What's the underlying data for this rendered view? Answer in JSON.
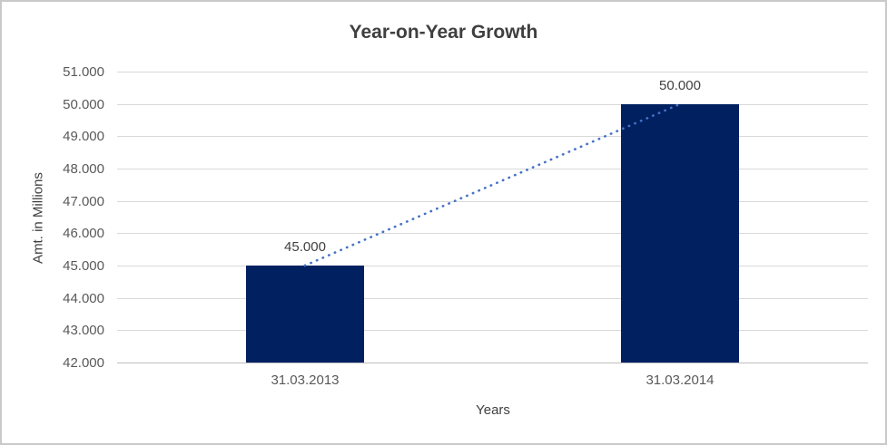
{
  "chart_data": {
    "type": "bar",
    "title": "Year-on-Year Growth",
    "xlabel": "Years",
    "ylabel": "Amt. in Millions",
    "categories": [
      "31.03.2013",
      "31.03.2014"
    ],
    "series": [
      {
        "name": "bars",
        "type": "bar",
        "values": [
          45000,
          50000
        ],
        "data_labels": [
          "45.000",
          "50.000"
        ],
        "color": "#002060"
      },
      {
        "name": "trendline",
        "type": "dotted-line",
        "values": [
          45000,
          50000
        ],
        "color": "#4472c4"
      }
    ],
    "y_axis": {
      "min": 42000,
      "max": 51000,
      "step": 1000,
      "tick_labels": [
        "42.000",
        "43.000",
        "44.000",
        "45.000",
        "46.000",
        "47.000",
        "48.000",
        "49.000",
        "50.000",
        "51.000"
      ]
    },
    "grid": true,
    "legend_position": "none",
    "colors": {
      "bar": "#002060",
      "trendline": "#4472c4",
      "gridline": "#d9d9d9",
      "axis_line": "#bfbfbf",
      "title_text": "#3f3f3f",
      "tick_text": "#595959",
      "frame_border": "#c9c9c9",
      "background": "#ffffff"
    }
  }
}
